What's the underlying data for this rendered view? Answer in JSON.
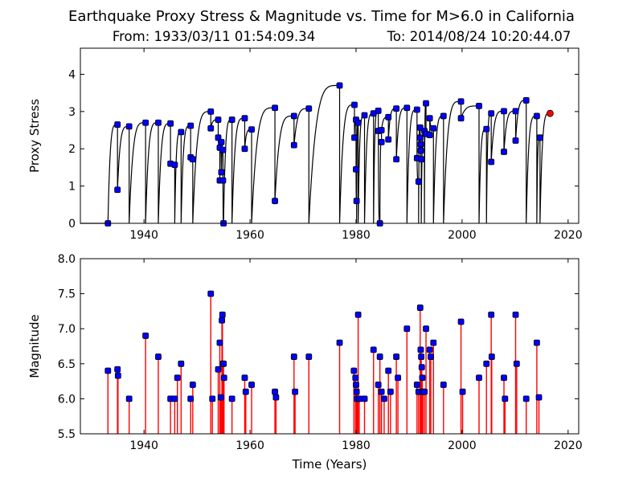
{
  "title": "Earthquake Proxy Stress & Magnitude vs. Time for M>6.0 in California",
  "subtitle_from": "From: 1933/03/11 01:54:09.34",
  "subtitle_to": "To: 2014/08/24 10:20:44.07",
  "chart_data": [
    {
      "type": "line",
      "ylabel": "Proxy Stress",
      "xlim": [
        1928,
        2022
      ],
      "ylim": [
        0,
        4.7
      ],
      "xticks": [
        1940,
        1960,
        1980,
        2000,
        2020
      ],
      "yticks": [
        0,
        1,
        2,
        3,
        4
      ],
      "curve_color": "#000000",
      "marker_color": "#0000ff",
      "current_marker_color": "#ff0000",
      "events": [
        {
          "t": 1933.2,
          "before": 0.0
        },
        {
          "t": 1935.0,
          "before": 2.65,
          "after": 0.9
        },
        {
          "t": 1937.2,
          "before": 2.6
        },
        {
          "t": 1940.3,
          "before": 2.7
        },
        {
          "t": 1942.7,
          "before": 2.7
        },
        {
          "t": 1945.0,
          "before": 2.68,
          "after": 1.6
        },
        {
          "t": 1945.8,
          "before": 1.57
        },
        {
          "t": 1947.0,
          "before": 2.45
        },
        {
          "t": 1948.8,
          "before": 2.62,
          "after": 1.77
        },
        {
          "t": 1949.2,
          "before": 1.72
        },
        {
          "t": 1952.6,
          "before": 3.0,
          "after": 2.55
        },
        {
          "t": 1954.0,
          "before": 2.78,
          "after": 2.3
        },
        {
          "t": 1954.3,
          "before": 2.03,
          "after": 1.15
        },
        {
          "t": 1954.6,
          "before": 2.18,
          "after": 1.37
        },
        {
          "t": 1954.9,
          "before": 1.97,
          "after": 1.15
        },
        {
          "t": 1955.0,
          "before": 0.0
        },
        {
          "t": 1956.6,
          "before": 2.78
        },
        {
          "t": 1959.0,
          "before": 2.82,
          "after": 2.0
        },
        {
          "t": 1960.3,
          "before": 2.52
        },
        {
          "t": 1964.7,
          "before": 3.1,
          "after": 0.6
        },
        {
          "t": 1968.3,
          "before": 2.88,
          "after": 2.1
        },
        {
          "t": 1971.1,
          "before": 3.08
        },
        {
          "t": 1976.9,
          "before": 3.7
        },
        {
          "t": 1979.7,
          "before": 3.18,
          "after": 2.3
        },
        {
          "t": 1980.0,
          "before": 2.78,
          "after": 1.45
        },
        {
          "t": 1980.1,
          "before": 0.6
        },
        {
          "t": 1980.4,
          "before": 2.7
        },
        {
          "t": 1981.6,
          "before": 2.9
        },
        {
          "t": 1983.3,
          "before": 2.95
        },
        {
          "t": 1984.2,
          "before": 3.02,
          "after": 2.48
        },
        {
          "t": 1984.5,
          "before": 0.0
        },
        {
          "t": 1984.8,
          "before": 2.18,
          "after": 2.5
        },
        {
          "t": 1986.1,
          "before": 2.85,
          "after": 2.25
        },
        {
          "t": 1987.6,
          "before": 3.08,
          "after": 1.72
        },
        {
          "t": 1989.6,
          "before": 3.1
        },
        {
          "t": 1991.5,
          "before": 3.05,
          "after": 1.75
        },
        {
          "t": 1991.8,
          "before": 1.12
        },
        {
          "t": 1992.1,
          "before": 2.57,
          "after": 2.3
        },
        {
          "t": 1992.2,
          "before": 2.12,
          "after": 1.95
        },
        {
          "t": 1992.3,
          "before": 1.72
        },
        {
          "t": 1992.9,
          "before": 2.48
        },
        {
          "t": 1993.2,
          "before": 3.22,
          "after": 2.4
        },
        {
          "t": 1993.9,
          "before": 2.37,
          "after": 2.82
        },
        {
          "t": 1994.6,
          "before": 2.55
        },
        {
          "t": 1996.5,
          "before": 2.88
        },
        {
          "t": 1999.8,
          "before": 3.27,
          "after": 2.82
        },
        {
          "t": 2003.2,
          "before": 3.15
        },
        {
          "t": 2004.6,
          "before": 2.53
        },
        {
          "t": 2005.5,
          "before": 2.95,
          "after": 1.65
        },
        {
          "t": 2007.9,
          "before": 3.01,
          "after": 1.92
        },
        {
          "t": 2010.1,
          "before": 3.01,
          "after": 2.22
        },
        {
          "t": 2012.1,
          "before": 3.3
        },
        {
          "t": 2014.1,
          "before": 2.88
        },
        {
          "t": 2014.7,
          "before": 2.3
        }
      ],
      "current": {
        "t": 2016.6,
        "value": 2.95
      }
    },
    {
      "type": "stem",
      "xlabel": "Time (Years)",
      "ylabel": "Magnitude",
      "xlim": [
        1928,
        2022
      ],
      "ylim": [
        5.5,
        8.0
      ],
      "xticks": [
        1940,
        1960,
        1980,
        2000,
        2020
      ],
      "yticks": [
        5.5,
        6.0,
        6.5,
        7.0,
        7.5,
        8.0
      ],
      "stem_color": "#ff0000",
      "marker_color": "#0000ff",
      "x": [
        1933.2,
        1935.0,
        1935.1,
        1937.2,
        1940.3,
        1942.7,
        1945.0,
        1945.8,
        1946.3,
        1947.0,
        1948.8,
        1949.2,
        1952.6,
        1952.9,
        1954.0,
        1954.3,
        1954.5,
        1954.7,
        1954.8,
        1954.9,
        1955.0,
        1955.1,
        1956.6,
        1959.0,
        1959.2,
        1960.3,
        1964.7,
        1964.9,
        1968.3,
        1968.5,
        1971.1,
        1976.9,
        1979.6,
        1979.9,
        1980.0,
        1980.1,
        1980.2,
        1980.4,
        1980.6,
        1981.6,
        1983.3,
        1984.2,
        1984.5,
        1984.8,
        1985.3,
        1986.1,
        1986.5,
        1987.6,
        1987.9,
        1989.6,
        1991.5,
        1991.8,
        1992.1,
        1992.2,
        1992.3,
        1992.4,
        1992.5,
        1992.6,
        1992.9,
        1993.2,
        1993.9,
        1994.1,
        1994.6,
        1996.5,
        1999.8,
        2000.1,
        2003.2,
        2004.6,
        2005.5,
        2005.6,
        2007.9,
        2008.1,
        2010.1,
        2010.3,
        2012.1,
        2014.1,
        2014.5
      ],
      "values": [
        6.4,
        6.42,
        6.33,
        6.0,
        6.9,
        6.6,
        6.0,
        6.0,
        6.3,
        6.5,
        6.0,
        6.2,
        7.5,
        6.0,
        6.42,
        6.8,
        6.02,
        7.12,
        7.2,
        6.5,
        6.5,
        6.3,
        6.0,
        6.3,
        6.1,
        6.2,
        6.1,
        6.02,
        6.6,
        6.1,
        6.6,
        6.8,
        6.4,
        6.3,
        6.2,
        6.1,
        6.0,
        7.2,
        6.0,
        6.0,
        6.7,
        6.2,
        6.6,
        6.1,
        6.0,
        6.4,
        6.1,
        6.6,
        6.3,
        7.0,
        6.2,
        6.1,
        7.3,
        6.7,
        6.6,
        6.45,
        6.3,
        6.1,
        6.1,
        7.0,
        6.7,
        6.6,
        6.8,
        6.2,
        7.1,
        6.1,
        6.3,
        6.5,
        7.2,
        6.6,
        6.3,
        6.0,
        7.2,
        6.5,
        6.0,
        6.8,
        6.02
      ]
    }
  ]
}
